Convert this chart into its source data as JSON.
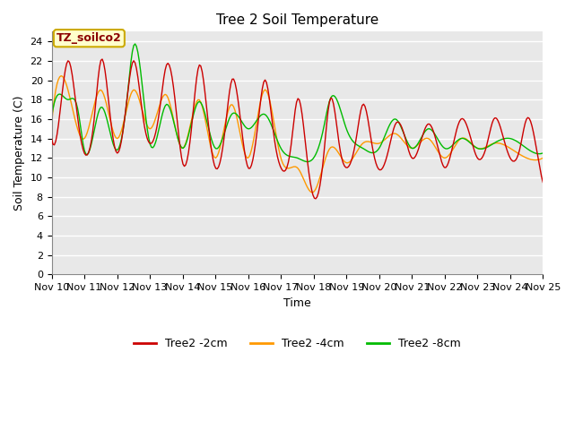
{
  "title": "Tree 2 Soil Temperature",
  "xlabel": "Time",
  "ylabel": "Soil Temperature (C)",
  "ylim": [
    0,
    25
  ],
  "yticks": [
    0,
    2,
    4,
    6,
    8,
    10,
    12,
    14,
    16,
    18,
    20,
    22,
    24
  ],
  "xtick_labels": [
    "Nov 10",
    "Nov 11",
    "Nov 12",
    "Nov 13",
    "Nov 14",
    "Nov 15",
    "Nov 16",
    "Nov 17",
    "Nov 18",
    "Nov 19",
    "Nov 20",
    "Nov 21",
    "Nov 22",
    "Nov 23",
    "Nov 24",
    "Nov 25"
  ],
  "legend_labels": [
    "Tree2 -2cm",
    "Tree2 -4cm",
    "Tree2 -8cm"
  ],
  "annotation_text": "TZ_soilco2",
  "annotation_bg": "#ffffcc",
  "annotation_border": "#ccaa00",
  "plot_bg": "#e8e8e8",
  "fig_bg": "#ffffff",
  "grid_color": "#ffffff",
  "line_colors": [
    "#cc0000",
    "#ff9900",
    "#00bb00"
  ],
  "line_width": 1.0,
  "title_fontsize": 11,
  "label_fontsize": 9,
  "tick_fontsize": 8,
  "legend_fontsize": 9
}
